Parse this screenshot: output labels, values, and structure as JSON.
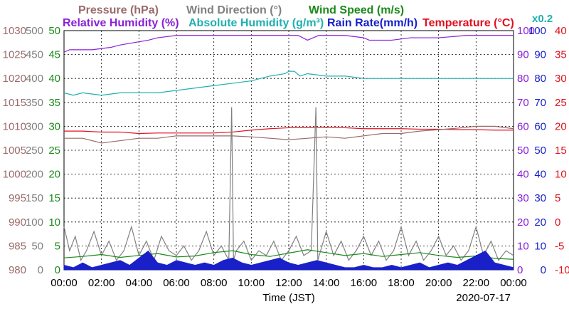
{
  "chart_data": {
    "type": "line",
    "date": "2020-07-17",
    "xlabel": "Time (JST)",
    "x_ticks": [
      "00:00",
      "02:00",
      "04:00",
      "06:00",
      "08:00",
      "10:00",
      "12:00",
      "14:00",
      "16:00",
      "18:00",
      "20:00",
      "22:00",
      "00:00"
    ],
    "x_range_hours": [
      0,
      24
    ],
    "grid": true,
    "legend_row1": [
      {
        "label": "Pressure (hPa)",
        "color": "#9a6a6a"
      },
      {
        "label": "Wind Direction (°)",
        "color": "#808080"
      },
      {
        "label": "Wind Speed (m/s)",
        "color": "#1a8a1a"
      }
    ],
    "legend_row2": [
      {
        "label": "Relative Humidity (%)",
        "color": "#8a20d8"
      },
      {
        "label": "Absolute Humidity (g/m³)",
        "color": "#20b0b0"
      },
      {
        "label": "Rain Rate(mm/h)",
        "color": "#1a20c8"
      },
      {
        "label": "Temperature (°C)",
        "color": "#e01020"
      }
    ],
    "scale_note": {
      "text": "x0.2",
      "color": "#20b0b0"
    },
    "axes": {
      "pressure": {
        "color": "#9a6a6a",
        "range": [
          980,
          1030
        ],
        "ticks": [
          "1030",
          "1025",
          "1020",
          "1015",
          "1010",
          "1005",
          "1000",
          "995",
          "990",
          "985",
          "980"
        ]
      },
      "wind_direction": {
        "color": "#808080",
        "range": [
          0,
          500
        ],
        "ticks": [
          "500",
          "450",
          "400",
          "350",
          "300",
          "250",
          "200",
          "150",
          "100",
          "50",
          "0"
        ]
      },
      "wind_speed": {
        "color": "#1a8a1a",
        "range": [
          0,
          50
        ],
        "ticks": [
          "50",
          "45",
          "40",
          "35",
          "30",
          "25",
          "20",
          "15",
          "10",
          "5",
          "0"
        ]
      },
      "humidity": {
        "color": "#8a20d8",
        "range": [
          0,
          100
        ],
        "ticks": [
          "100",
          "90",
          "80",
          "70",
          "60",
          "50",
          "40",
          "30",
          "20",
          "10",
          "0"
        ]
      },
      "rain_rate": {
        "color": "#1a20c8",
        "range": [
          0,
          100
        ],
        "ticks": [
          "100",
          "90",
          "80",
          "70",
          "60",
          "50",
          "40",
          "30",
          "20",
          "10",
          "0"
        ]
      },
      "temperature": {
        "color": "#e01020",
        "range": [
          -10,
          40
        ],
        "ticks": [
          "40",
          "35",
          "30",
          "25",
          "20",
          "15",
          "10",
          "5",
          "0",
          "-5",
          "-10"
        ]
      }
    },
    "series": [
      {
        "name": "Relative Humidity (%)",
        "axis": "humidity",
        "color": "#8a20d8",
        "x": [
          0,
          0.3,
          1.5,
          2.5,
          3.0,
          4.5,
          5.0,
          6.0,
          7.0,
          9.0,
          11.0,
          12.5,
          13.0,
          13.6,
          15.0,
          16.0,
          16.3,
          17.5,
          18.5,
          20.0,
          21.5,
          24.0
        ],
        "y": [
          91,
          92,
          92,
          93,
          94,
          96,
          97,
          98,
          98,
          98,
          98,
          98,
          96,
          98,
          98,
          97,
          96,
          96,
          97,
          97,
          98,
          98
        ]
      },
      {
        "name": "Absolute Humidity (g/m³)",
        "axis": "humidity",
        "color": "#20b0b0",
        "x": [
          0,
          0.5,
          1.0,
          2.0,
          3.0,
          4.0,
          5.0,
          6.0,
          7.0,
          8.0,
          9.0,
          10.0,
          11.0,
          11.8,
          12.0,
          12.3,
          12.6,
          13.0,
          14.0,
          15.0,
          16.0,
          17.0,
          18.0,
          19.0,
          20.0,
          21.0,
          22.0,
          23.0,
          24.0
        ],
        "y": [
          74,
          73,
          74,
          73,
          74,
          74,
          74,
          75,
          76,
          77,
          78,
          79,
          81,
          82,
          83,
          83,
          81,
          82,
          81,
          81,
          80,
          80,
          80,
          80,
          80,
          80,
          80,
          80,
          80
        ]
      },
      {
        "name": "Temperature (°C)",
        "axis": "temperature",
        "color": "#e01020",
        "x": [
          0,
          1,
          2,
          3,
          4,
          5,
          6,
          7,
          8,
          9,
          10,
          11,
          12,
          13,
          14,
          15,
          16,
          17,
          18,
          19,
          20,
          21,
          22,
          23,
          24
        ],
        "y": [
          19,
          19,
          18.8,
          18.8,
          18.5,
          18.6,
          18.6,
          18.6,
          18.6,
          18.8,
          19.2,
          19.5,
          19.7,
          19.7,
          19.8,
          19.7,
          19.5,
          19.5,
          19.5,
          19.4,
          19.4,
          19.3,
          19.3,
          19.2,
          19.2
        ]
      },
      {
        "name": "Pressure (hPa)",
        "axis": "pressure",
        "color": "#9a6a6a",
        "x": [
          0,
          1,
          2,
          3,
          4,
          5,
          6,
          7,
          8,
          9,
          10,
          11,
          12,
          13,
          14,
          15,
          16,
          17,
          18,
          19,
          20,
          21,
          22,
          23,
          24
        ],
        "y": [
          1007.5,
          1007.5,
          1006.5,
          1007.0,
          1007.5,
          1007.5,
          1008.0,
          1008.0,
          1008.0,
          1008.0,
          1007.8,
          1007.5,
          1007.2,
          1007.5,
          1007.8,
          1007.5,
          1008.0,
          1008.5,
          1008.5,
          1009.0,
          1009.3,
          1009.6,
          1010.0,
          1010.0,
          1009.5
        ]
      },
      {
        "name": "Wind Direction (°)",
        "axis": "wind_direction",
        "color": "#808080",
        "x": [
          0,
          0.3,
          0.6,
          0.9,
          1.2,
          1.6,
          2.0,
          2.4,
          2.8,
          3.2,
          3.6,
          4.0,
          4.4,
          4.8,
          5.2,
          5.6,
          6.0,
          6.4,
          6.8,
          7.2,
          7.6,
          8.0,
          8.4,
          8.8,
          8.95,
          9.05,
          9.2,
          9.6,
          10.0,
          10.4,
          10.8,
          11.2,
          11.6,
          12.0,
          12.4,
          12.8,
          13.2,
          13.45,
          13.55,
          13.7,
          14.0,
          14.4,
          14.8,
          15.2,
          15.6,
          16.0,
          16.4,
          16.8,
          17.2,
          17.6,
          18.0,
          18.4,
          18.8,
          19.2,
          19.6,
          20.0,
          20.4,
          20.8,
          21.2,
          21.6,
          22.0,
          22.4,
          22.8,
          23.2,
          23.6,
          24.0
        ],
        "y": [
          90,
          40,
          70,
          20,
          40,
          80,
          30,
          60,
          20,
          40,
          90,
          30,
          60,
          20,
          70,
          40,
          30,
          50,
          20,
          40,
          80,
          30,
          50,
          20,
          340,
          20,
          40,
          60,
          20,
          40,
          30,
          60,
          20,
          40,
          70,
          30,
          40,
          340,
          20,
          40,
          80,
          30,
          60,
          20,
          40,
          70,
          30,
          60,
          20,
          40,
          90,
          30,
          60,
          20,
          40,
          70,
          30,
          50,
          20,
          40,
          90,
          30,
          60,
          20,
          40,
          30
        ]
      },
      {
        "name": "Wind Speed (m/s)",
        "axis": "wind_speed",
        "color": "#1a8a1a",
        "x": [
          0,
          1,
          2,
          3,
          4,
          5,
          6,
          7,
          8,
          9,
          10,
          11,
          12,
          13,
          14,
          15,
          16,
          17,
          18,
          19,
          20,
          21,
          22,
          23,
          24
        ],
        "y": [
          2.5,
          2.8,
          3.2,
          2.6,
          3.0,
          3.4,
          2.7,
          2.9,
          3.6,
          4.0,
          3.2,
          2.8,
          3.5,
          4.2,
          3.6,
          3.0,
          3.4,
          2.8,
          3.2,
          3.6,
          3.0,
          2.6,
          2.9,
          2.4,
          2.2
        ]
      },
      {
        "name": "Rain Rate(mm/h)",
        "axis": "rain_rate",
        "color": "#1a20c8",
        "x": [
          0,
          0.5,
          1.0,
          1.5,
          2.0,
          2.5,
          3.0,
          3.5,
          4.0,
          4.5,
          5.0,
          5.5,
          6.0,
          6.5,
          7.0,
          7.5,
          8.0,
          8.5,
          9.0,
          9.5,
          10.0,
          10.5,
          11.0,
          11.5,
          12.0,
          12.5,
          13.0,
          13.5,
          14.0,
          14.5,
          15.0,
          15.5,
          16.0,
          16.5,
          17.0,
          17.5,
          18.0,
          18.5,
          19.0,
          19.5,
          20.0,
          20.5,
          21.0,
          21.5,
          22.0,
          22.5,
          23.0,
          23.5,
          24.0
        ],
        "y": [
          2,
          1,
          3,
          1,
          2,
          3,
          4,
          2,
          5,
          8,
          3,
          2,
          4,
          3,
          2,
          3,
          2,
          4,
          5,
          3,
          2,
          3,
          4,
          5,
          3,
          2,
          3,
          4,
          3,
          2,
          1,
          1,
          2,
          1,
          1,
          2,
          1,
          2,
          3,
          1,
          2,
          3,
          2,
          4,
          6,
          8,
          3,
          2,
          1
        ]
      }
    ]
  }
}
